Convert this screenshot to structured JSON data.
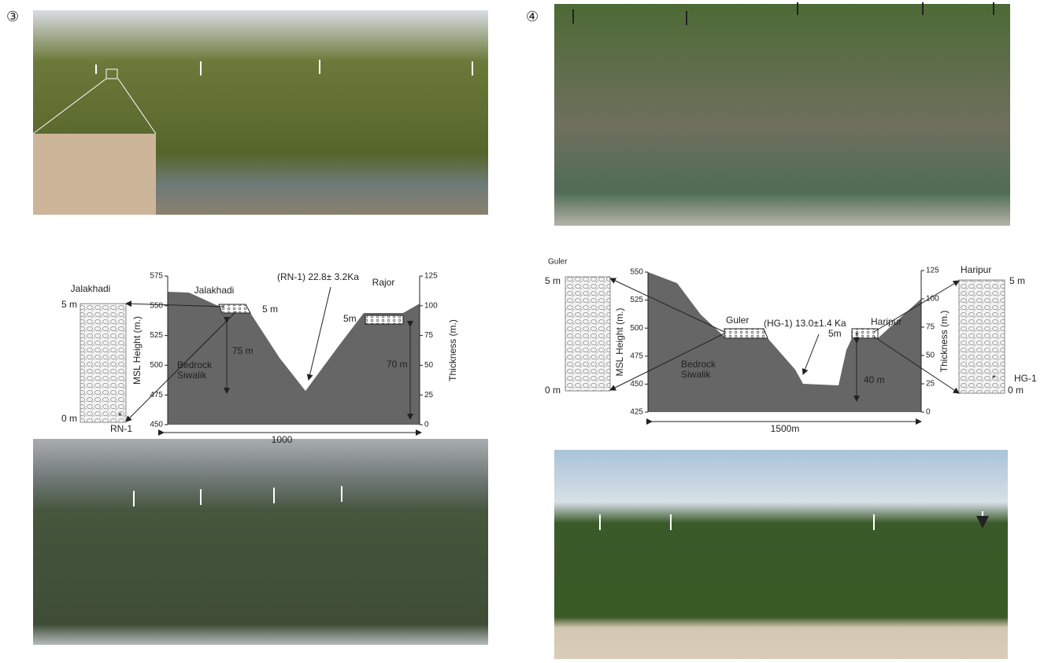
{
  "panels": [
    {
      "label": "③"
    },
    {
      "label": "④"
    }
  ],
  "section_left": {
    "column_title": "Jalakhadi",
    "column_top": "5 m",
    "column_bottom": "0 m",
    "sample": "RN-1",
    "terrace_left": "Jalakhadi",
    "terrace_right": "Rajor",
    "age": "(RN-1) 22.8± 3.2Ka",
    "deposit_left": "5 m",
    "deposit_right": "5m",
    "height_left": "75 m",
    "height_right": "70 m",
    "bedrock": [
      "Bedrock",
      "Siwalik"
    ],
    "width": "1000",
    "left_axis": {
      "label": "MSL Height (m.)",
      "lim": [
        450,
        575
      ],
      "ticks": [
        450,
        475,
        500,
        525,
        550,
        575
      ]
    },
    "right_axis": {
      "label": "Thickness (m.)",
      "lim": [
        0,
        125
      ],
      "ticks": [
        0,
        25,
        50,
        75,
        100,
        125
      ]
    }
  },
  "section_right": {
    "column_title": "Guler",
    "column_top": "5 m",
    "column_bottom": "0 m",
    "terrace_left": "Guler",
    "terrace_right": "Haripur",
    "column_right_title": "Haripur",
    "column_right_top": "5 m",
    "column_right_bottom": "0 m",
    "sample": "HG-1",
    "age": "(HG-1) 13.0±1.4 Ka",
    "deposit_right": "5m",
    "height_right": "40 m",
    "bedrock": [
      "Bedrock",
      "Siwalik"
    ],
    "width": "1500m",
    "left_axis": {
      "label": "MSL Height (m.)",
      "lim": [
        425,
        550
      ],
      "ticks": [
        425,
        450,
        475,
        500,
        525,
        550
      ]
    },
    "right_axis": {
      "label": "Thickness (m.)",
      "lim": [
        0,
        125
      ],
      "ticks": [
        0,
        25,
        50,
        75,
        100,
        125
      ]
    }
  }
}
